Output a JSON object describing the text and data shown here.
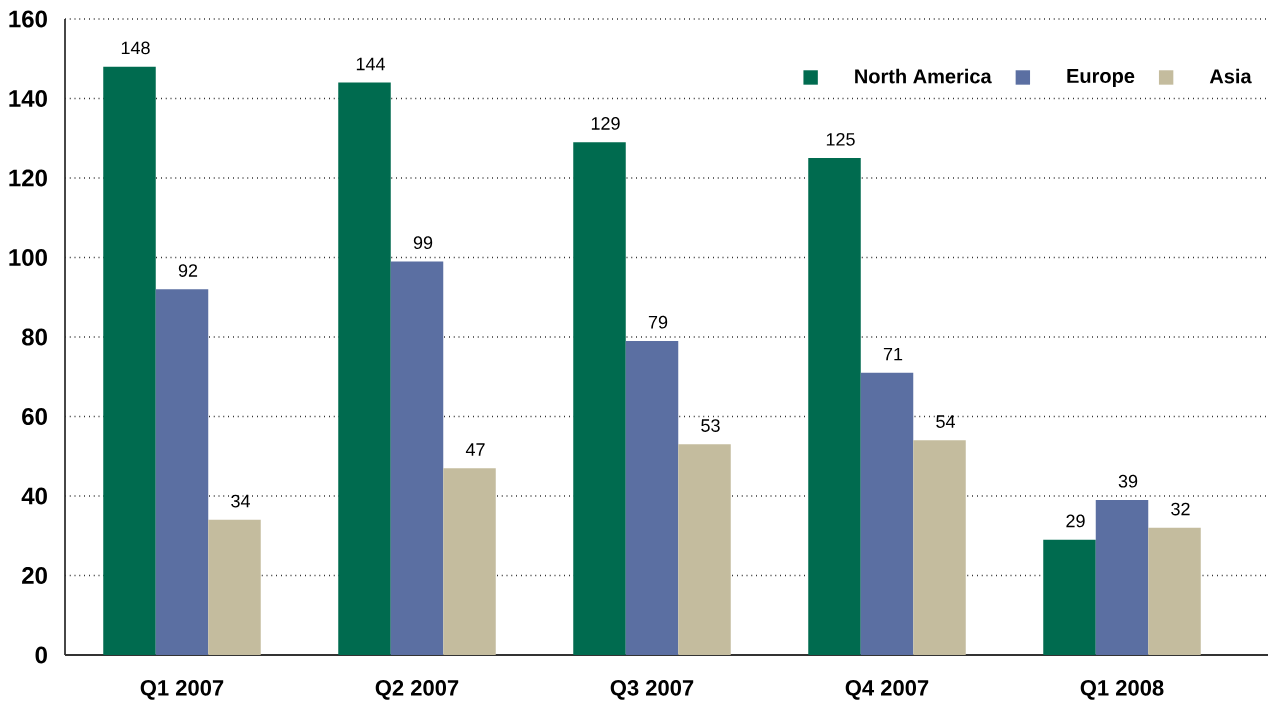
{
  "chart_data": {
    "type": "bar",
    "categories": [
      "Q1 2007",
      "Q2 2007",
      "Q3 2007",
      "Q4 2007",
      "Q1 2008"
    ],
    "series": [
      {
        "name": "North America",
        "color": "#006b4f",
        "values": [
          148,
          144,
          129,
          125,
          29
        ]
      },
      {
        "name": "Europe",
        "color": "#5b6fa2",
        "values": [
          92,
          99,
          79,
          71,
          39
        ]
      },
      {
        "name": "Asia",
        "color": "#c4bc9e",
        "values": [
          34,
          47,
          53,
          54,
          32
        ]
      }
    ],
    "ylim": [
      0,
      160
    ],
    "yticks": [
      0,
      20,
      40,
      60,
      80,
      100,
      120,
      140,
      160
    ],
    "grid": "y",
    "legend": "top right",
    "data_labels": true
  }
}
